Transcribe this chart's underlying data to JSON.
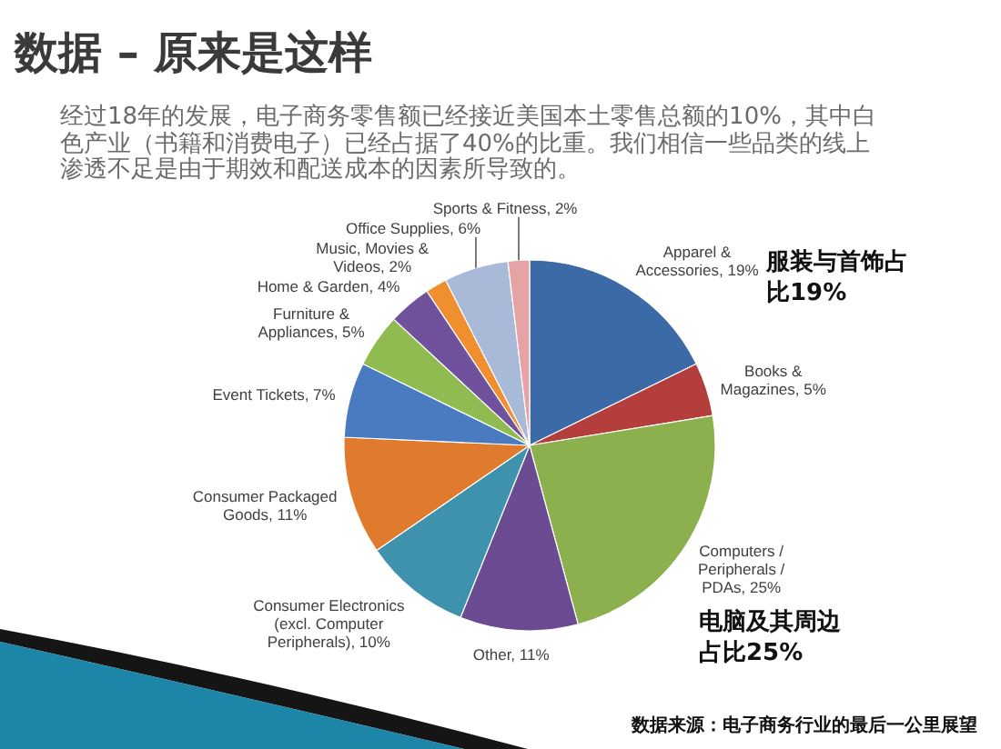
{
  "chart_data": {
    "type": "pie",
    "title": "数据 – 原来是这样",
    "subtitle": "经过18年的发展，电子商务零售额已经接近美国本土零售总额的10%，其中白色产业（书籍和消费电子）已经占据了40%的比重。我们相信一些品类的线上渗透不足是由于期效和配送成本的因素所导致的。",
    "categories": [
      "Apparel & Accessories",
      "Books & Magazines",
      "Computers / Peripherals / PDAs",
      "Other",
      "Consumer Electronics (excl. Computer Peripherals)",
      "Consumer Packaged Goods",
      "Event Tickets",
      "Furniture & Appliances",
      "Home & Garden",
      "Music, Movies & Videos",
      "Office Supplies",
      "Sports & Fitness"
    ],
    "values": [
      19,
      5,
      25,
      11,
      10,
      11,
      7,
      5,
      4,
      2,
      6,
      2
    ],
    "value_labels": [
      "19%",
      "5%",
      "25%",
      "11%",
      "10%",
      "11%",
      "7%",
      "5%",
      "4%",
      "2%",
      "6%",
      "2%"
    ],
    "colors": [
      "#3c6aa6",
      "#b33e3b",
      "#8db04e",
      "#6b4c93",
      "#3e92ab",
      "#e07b2e",
      "#4a7bc0",
      "#90bb50",
      "#6f519c",
      "#f08f30",
      "#a9bad9",
      "#e3a4a3"
    ],
    "annotations": [
      "服装与首饰占比19%",
      "电脑及其周边占比25%",
      "数据来源：电子商务行业的最后一公里展望"
    ]
  }
}
